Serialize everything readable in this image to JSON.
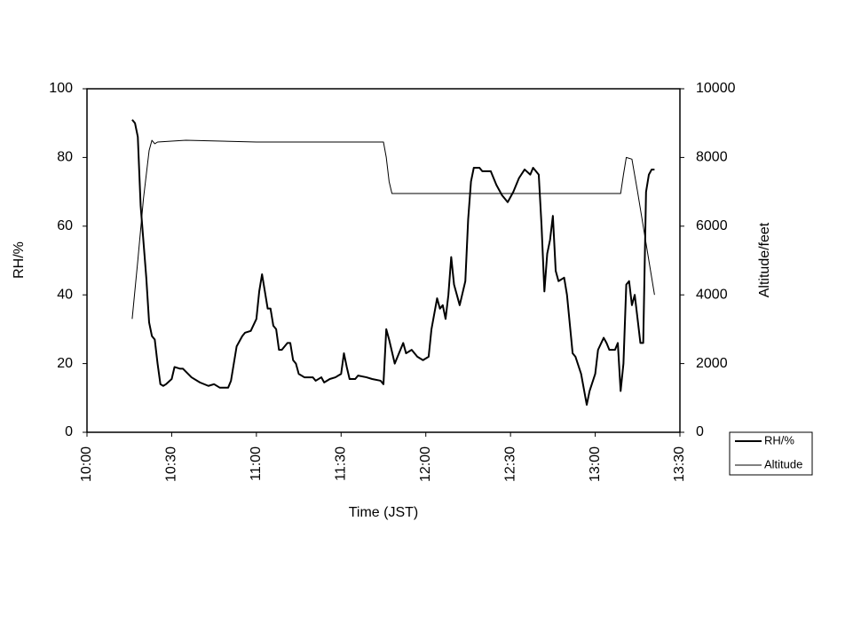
{
  "chart_data": {
    "type": "line",
    "x_label": "Time (JST)",
    "y_label": "RH/%",
    "y2_label": "Altitude/feet",
    "xlim": [
      "10:00",
      "13:30"
    ],
    "xticks": [
      "10:00",
      "10:30",
      "11:00",
      "11:30",
      "12:00",
      "12:30",
      "13:00",
      "13:30"
    ],
    "ylim": [
      0,
      100
    ],
    "yticks": [
      0,
      20,
      40,
      60,
      80,
      100
    ],
    "y2lim": [
      0,
      10000
    ],
    "y2ticks": [
      0,
      2000,
      4000,
      6000,
      8000,
      10000
    ],
    "legend": "bottom-right",
    "series": [
      {
        "name": "RH/%",
        "color": "#000000",
        "width": 2,
        "x": [
          "10:16",
          "10:17",
          "10:18",
          "10:19",
          "10:21",
          "10:22",
          "10:23",
          "10:24",
          "10:25",
          "10:26",
          "10:27",
          "10:28",
          "10:30",
          "10:31",
          "10:33",
          "10:34",
          "10:37",
          "10:40",
          "10:43",
          "10:45",
          "10:47",
          "10:50",
          "10:51",
          "10:53",
          "10:55",
          "10:56",
          "10:58",
          "11:00",
          "11:01",
          "11:02",
          "11:04",
          "11:05",
          "11:06",
          "11:07",
          "11:08",
          "11:09",
          "11:11",
          "11:12",
          "11:13",
          "11:14",
          "11:15",
          "11:17",
          "11:20",
          "11:21",
          "11:23",
          "11:24",
          "11:26",
          "11:28",
          "11:30",
          "11:31",
          "11:32",
          "11:33",
          "11:35",
          "11:36",
          "11:39",
          "11:41",
          "11:44",
          "11:45",
          "11:46",
          "11:47",
          "11:49",
          "11:50",
          "11:52",
          "11:53",
          "11:55",
          "11:57",
          "11:59",
          "12:01",
          "12:02",
          "12:04",
          "12:05",
          "12:06",
          "12:07",
          "12:08",
          "12:09",
          "12:10",
          "12:11",
          "12:12",
          "12:14",
          "12:15",
          "12:16",
          "12:17",
          "12:19",
          "12:20",
          "12:23",
          "12:24",
          "12:25",
          "12:27",
          "12:29",
          "12:31",
          "12:33",
          "12:35",
          "12:37",
          "12:38",
          "12:40",
          "12:41",
          "12:42",
          "12:43",
          "12:44",
          "12:45",
          "12:46",
          "12:47",
          "12:49",
          "12:50",
          "12:52",
          "12:53",
          "12:55",
          "12:57",
          "12:58",
          "13:00",
          "13:01",
          "13:03",
          "13:04",
          "13:05",
          "13:07",
          "13:08",
          "13:09",
          "13:10",
          "13:11",
          "13:12",
          "13:13",
          "13:14",
          "13:15",
          "13:16",
          "13:17",
          "13:18",
          "13:19",
          "13:20",
          "13:21"
        ],
        "values": [
          91,
          90,
          86,
          66,
          45,
          32,
          28,
          27,
          20,
          14,
          13.5,
          14,
          15.5,
          19,
          18.5,
          18.5,
          16,
          14.5,
          13.5,
          14,
          13,
          13,
          15,
          25,
          28,
          29,
          29.5,
          33,
          41,
          46,
          36,
          36,
          31,
          30,
          24,
          24,
          26,
          26,
          21,
          20,
          17,
          16,
          16,
          15,
          16,
          14.5,
          15.5,
          16,
          17,
          23,
          19,
          15.5,
          15.5,
          16.5,
          16,
          15.5,
          15,
          14,
          30,
          27,
          20,
          22,
          26,
          23,
          24,
          22,
          21,
          22,
          30,
          39,
          36,
          37,
          33,
          40,
          51,
          43,
          40,
          37,
          44,
          62,
          73,
          77,
          77,
          76,
          76,
          74,
          72,
          69,
          67,
          70,
          74,
          76.5,
          75,
          77,
          75,
          60,
          41,
          52,
          56,
          63,
          47,
          44,
          45,
          40,
          23,
          22,
          17,
          8,
          12,
          17,
          24,
          27.5,
          26,
          24,
          24,
          26,
          12,
          20,
          43,
          44,
          37,
          40,
          33,
          26,
          26,
          70,
          75,
          76.5,
          76.5
        ]
      },
      {
        "name": "Altitude",
        "color": "#000000",
        "width": 1,
        "axis": "y2",
        "x": [
          "10:16",
          "10:18",
          "10:20",
          "10:22",
          "10:23",
          "10:24",
          "10:25",
          "10:35",
          "11:00",
          "11:30",
          "11:45",
          "11:46",
          "11:47",
          "11:48",
          "12:00",
          "12:30",
          "13:00",
          "13:09",
          "13:10",
          "13:11",
          "13:13",
          "13:15",
          "13:17",
          "13:19",
          "13:21"
        ],
        "values": [
          3300,
          5000,
          6800,
          8200,
          8500,
          8400,
          8450,
          8500,
          8450,
          8450,
          8450,
          8000,
          7300,
          6950,
          6950,
          6950,
          6950,
          6950,
          7500,
          8000,
          7950,
          7000,
          6000,
          5000,
          4000
        ]
      }
    ]
  }
}
